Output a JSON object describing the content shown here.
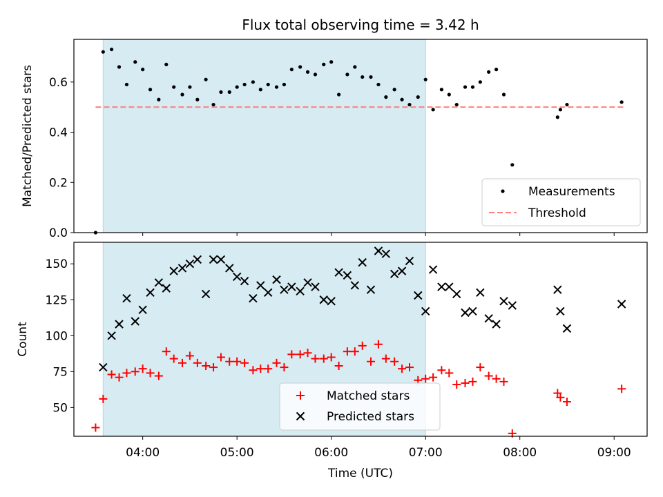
{
  "title": "Flux total observing time = 3.42 h",
  "colors": {
    "measurement": "#000000",
    "threshold": "#ff7f7f",
    "matched": "#ff0000",
    "predicted": "#000000",
    "shade": "#add8e6"
  },
  "chart_data": [
    {
      "type": "scatter",
      "ylabel": "Matched/Predicted stars",
      "xlim": [
        3.27,
        9.35
      ],
      "ylim": [
        0.0,
        0.77
      ],
      "yticks": [
        0.0,
        0.2,
        0.4,
        0.6
      ],
      "yticklabels": [
        "0.0",
        "0.2",
        "0.4",
        "0.6"
      ],
      "shaded_interval": [
        3.58,
        7.0
      ],
      "threshold": {
        "name": "Threshold",
        "value": 0.5,
        "x_range": [
          3.5,
          9.1
        ]
      },
      "legend": [
        "Measurements",
        "Threshold"
      ],
      "legend_position": "lower right",
      "series": [
        {
          "name": "Measurements",
          "marker": "dot",
          "x": [
            3.5,
            3.58,
            3.67,
            3.75,
            3.83,
            3.92,
            4.0,
            4.08,
            4.17,
            4.25,
            4.33,
            4.42,
            4.5,
            4.58,
            4.67,
            4.75,
            4.83,
            4.92,
            5.0,
            5.08,
            5.17,
            5.25,
            5.33,
            5.42,
            5.5,
            5.58,
            5.67,
            5.75,
            5.83,
            5.92,
            6.0,
            6.08,
            6.17,
            6.25,
            6.33,
            6.42,
            6.5,
            6.58,
            6.67,
            6.75,
            6.83,
            6.92,
            7.0,
            7.08,
            7.17,
            7.25,
            7.33,
            7.42,
            7.5,
            7.58,
            7.67,
            7.75,
            7.83,
            7.92,
            8.4,
            8.43,
            8.5,
            9.08
          ],
          "y": [
            0.0,
            0.72,
            0.73,
            0.66,
            0.59,
            0.68,
            0.65,
            0.57,
            0.53,
            0.67,
            0.58,
            0.55,
            0.58,
            0.53,
            0.61,
            0.51,
            0.56,
            0.56,
            0.58,
            0.59,
            0.6,
            0.57,
            0.59,
            0.58,
            0.59,
            0.65,
            0.66,
            0.64,
            0.63,
            0.67,
            0.68,
            0.55,
            0.63,
            0.66,
            0.62,
            0.62,
            0.59,
            0.54,
            0.57,
            0.53,
            0.51,
            0.54,
            0.61,
            0.49,
            0.57,
            0.55,
            0.51,
            0.58,
            0.58,
            0.6,
            0.64,
            0.65,
            0.55,
            0.27,
            0.46,
            0.49,
            0.51,
            0.52
          ]
        }
      ]
    },
    {
      "type": "scatter",
      "xlabel": "Time (UTC)",
      "ylabel": "Count",
      "xlim": [
        3.27,
        9.35
      ],
      "ylim": [
        30,
        165
      ],
      "xticks": [
        4,
        5,
        6,
        7,
        8,
        9
      ],
      "xticklabels": [
        "04:00",
        "05:00",
        "06:00",
        "07:00",
        "08:00",
        "09:00"
      ],
      "yticks": [
        50,
        75,
        100,
        125,
        150
      ],
      "yticklabels": [
        "50",
        "75",
        "100",
        "125",
        "150"
      ],
      "shaded_interval": [
        3.58,
        7.0
      ],
      "legend": [
        "Matched stars",
        "Predicted stars"
      ],
      "legend_position": "lower center",
      "series": [
        {
          "name": "Matched stars",
          "marker": "plus",
          "x": [
            3.5,
            3.58,
            3.67,
            3.75,
            3.83,
            3.92,
            4.0,
            4.08,
            4.17,
            4.25,
            4.33,
            4.42,
            4.5,
            4.58,
            4.67,
            4.75,
            4.83,
            4.92,
            5.0,
            5.08,
            5.17,
            5.25,
            5.33,
            5.42,
            5.5,
            5.58,
            5.67,
            5.75,
            5.83,
            5.92,
            6.0,
            6.08,
            6.17,
            6.25,
            6.33,
            6.42,
            6.5,
            6.58,
            6.67,
            6.75,
            6.83,
            6.92,
            7.0,
            7.08,
            7.17,
            7.25,
            7.33,
            7.42,
            7.5,
            7.58,
            7.67,
            7.75,
            7.83,
            7.92,
            8.4,
            8.43,
            8.5,
            9.08
          ],
          "y": [
            36,
            56,
            73,
            71,
            74,
            75,
            77,
            74,
            72,
            89,
            84,
            81,
            86,
            81,
            79,
            78,
            85,
            82,
            82,
            81,
            76,
            77,
            77,
            81,
            78,
            87,
            87,
            88,
            84,
            84,
            85,
            79,
            89,
            89,
            93,
            82,
            94,
            84,
            82,
            77,
            78,
            69,
            70,
            71,
            76,
            74,
            66,
            67,
            68,
            78,
            72,
            70,
            68,
            32,
            60,
            57,
            54,
            63
          ]
        },
        {
          "name": "Predicted stars",
          "marker": "x",
          "x": [
            3.58,
            3.67,
            3.75,
            3.83,
            3.92,
            4.0,
            4.08,
            4.17,
            4.25,
            4.33,
            4.42,
            4.5,
            4.58,
            4.67,
            4.75,
            4.83,
            4.92,
            5.0,
            5.08,
            5.17,
            5.25,
            5.33,
            5.42,
            5.5,
            5.58,
            5.67,
            5.75,
            5.83,
            5.92,
            6.0,
            6.08,
            6.17,
            6.25,
            6.33,
            6.42,
            6.5,
            6.58,
            6.67,
            6.75,
            6.83,
            6.92,
            7.0,
            7.08,
            7.17,
            7.25,
            7.33,
            7.42,
            7.5,
            7.58,
            7.67,
            7.75,
            7.83,
            7.92,
            8.4,
            8.43,
            8.5,
            9.08
          ],
          "y": [
            78,
            100,
            108,
            126,
            110,
            118,
            130,
            137,
            133,
            145,
            147,
            150,
            153,
            129,
            153,
            153,
            147,
            141,
            138,
            126,
            135,
            130,
            139,
            132,
            134,
            131,
            137,
            134,
            125,
            124,
            144,
            142,
            135,
            151,
            132,
            159,
            157,
            143,
            145,
            152,
            128,
            117,
            146,
            134,
            134,
            129,
            116,
            117,
            130,
            112,
            108,
            124,
            121,
            132,
            117,
            105,
            122
          ]
        }
      ]
    }
  ]
}
